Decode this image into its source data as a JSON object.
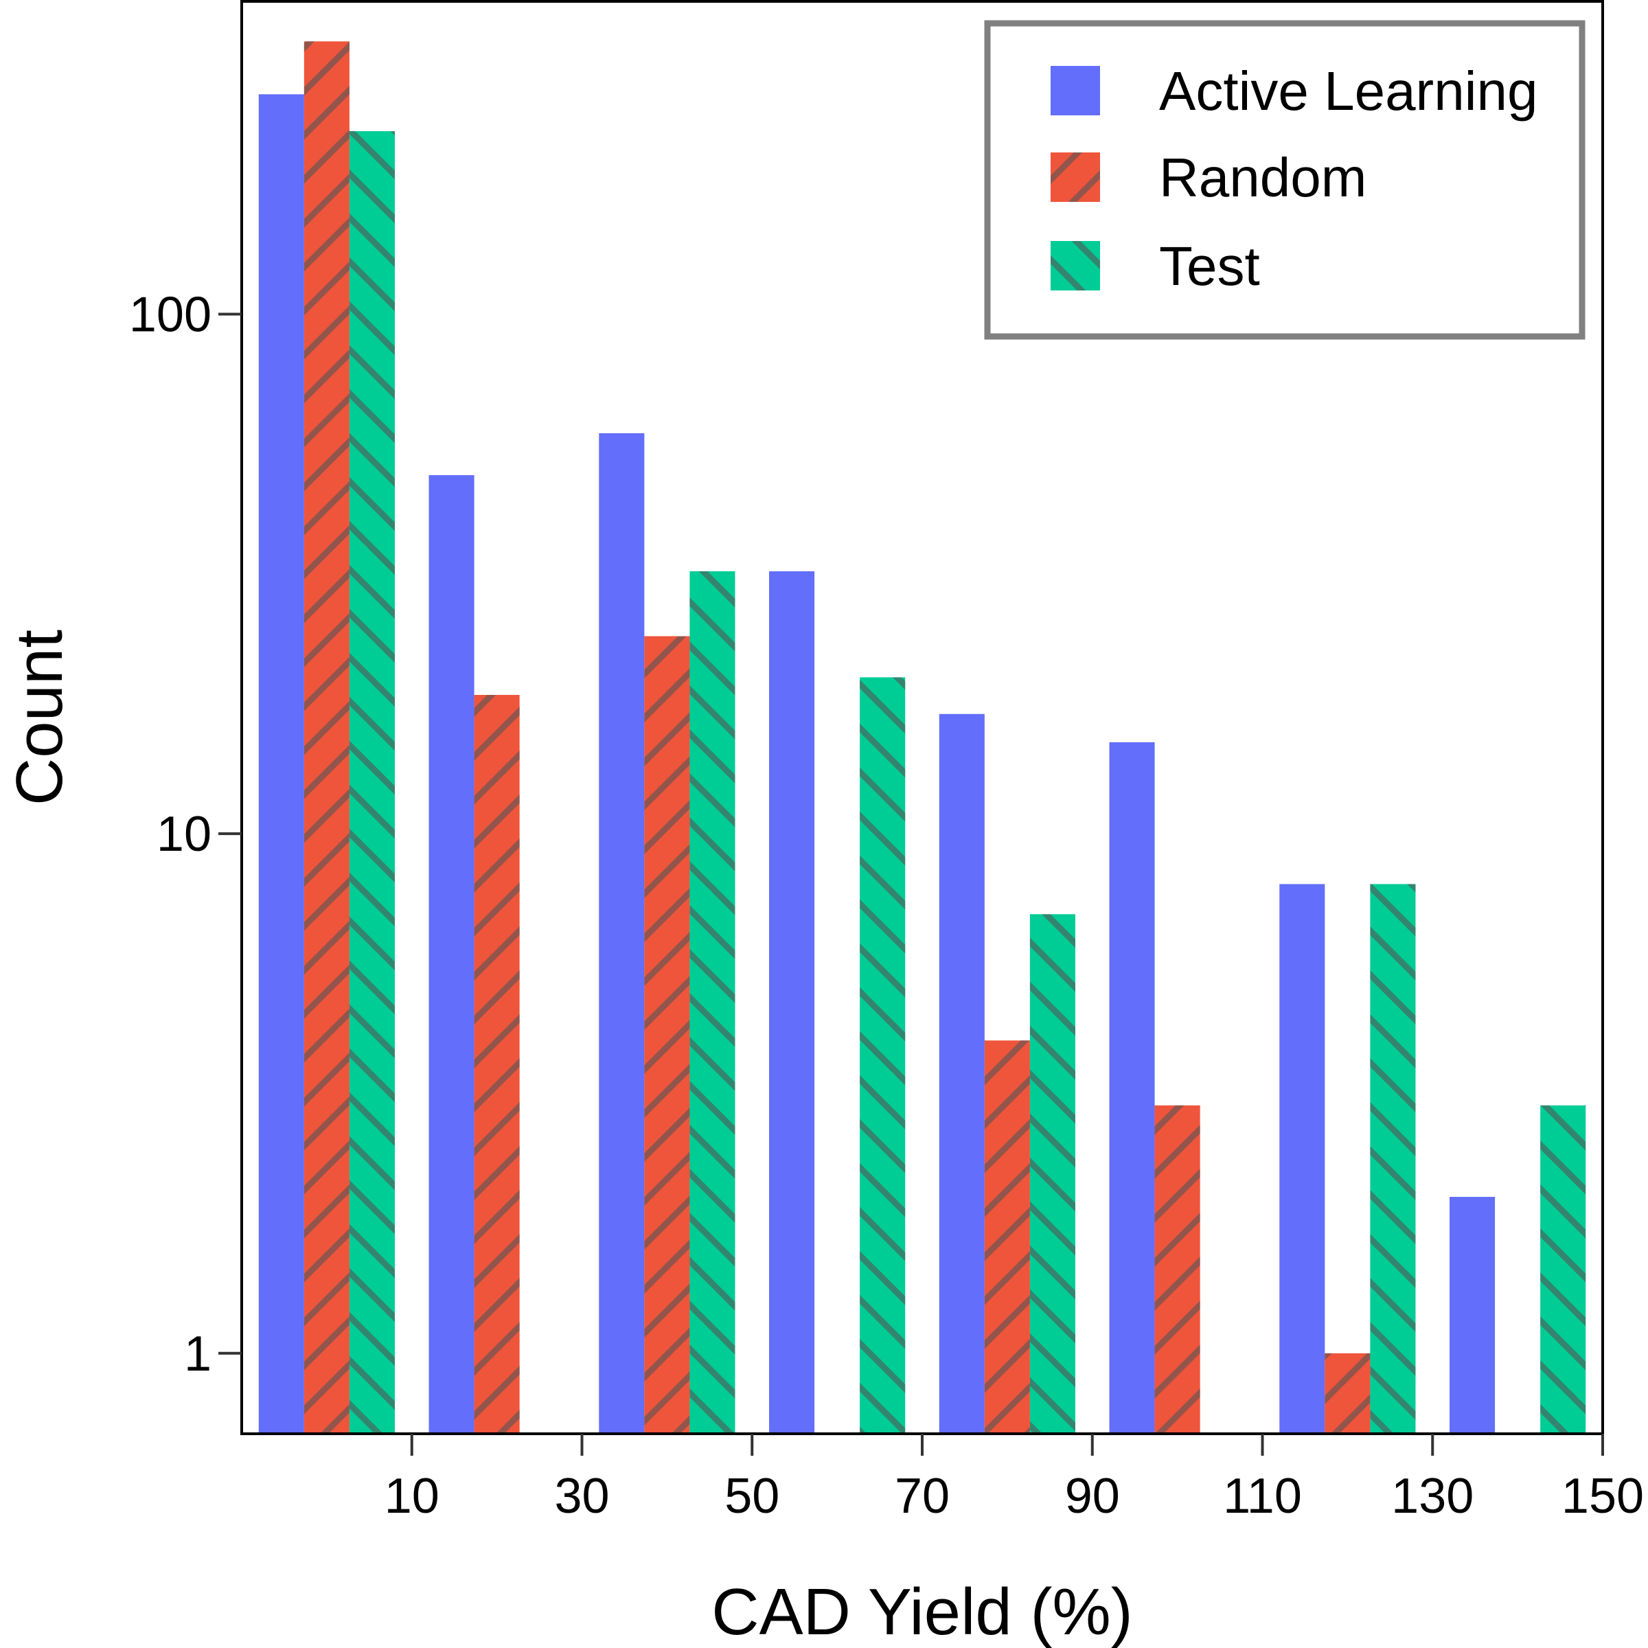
{
  "chart_data": {
    "type": "bar",
    "xlabel": "CAD Yield (%)",
    "ylabel": "Count",
    "yscale": "log",
    "ylim": [
      0.7,
      400
    ],
    "xlim": [
      -10,
      150
    ],
    "x_ticks": [
      10,
      30,
      50,
      70,
      90,
      110,
      130,
      150
    ],
    "y_ticks": [
      1,
      10,
      100
    ],
    "bin_starts": [
      -10,
      10,
      30,
      50,
      70,
      90,
      110,
      130
    ],
    "bin_width": 20,
    "grid": false,
    "legend_position": "top-right",
    "series": [
      {
        "name": "Active Learning",
        "color": "#636efa",
        "hatch": "none",
        "values": [
          265,
          49,
          59,
          32,
          17,
          15,
          8,
          2
        ]
      },
      {
        "name": "Random",
        "color": "#ef553b",
        "hatch": "forward-diagonal",
        "values": [
          335,
          18.5,
          24,
          null,
          4,
          3,
          1,
          null
        ]
      },
      {
        "name": "Test",
        "color": "#00cc96",
        "hatch": "back-diagonal",
        "values": [
          225,
          null,
          32,
          20,
          7,
          null,
          8,
          3
        ]
      }
    ]
  }
}
